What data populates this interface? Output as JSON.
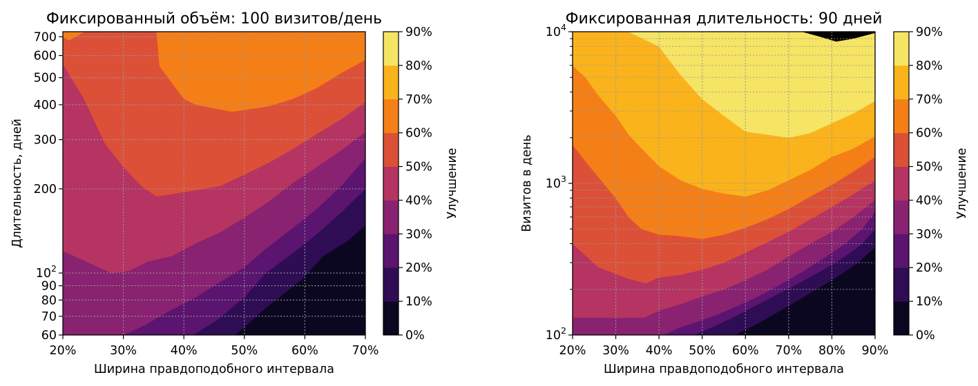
{
  "chart_data": [
    {
      "type": "heatmap",
      "title": "Фиксированный объём: 100 визитов/день",
      "xlabel": "Ширина правдоподобного интервала",
      "ylabel": "Длительность, дней",
      "xlim": [
        20,
        70
      ],
      "ylim": [
        60,
        730
      ],
      "yscale": "log",
      "grid": true,
      "x_ticks": [
        {
          "value": 20,
          "label": "20%"
        },
        {
          "value": 30,
          "label": "30%"
        },
        {
          "value": 40,
          "label": "40%"
        },
        {
          "value": 50,
          "label": "50%"
        },
        {
          "value": 60,
          "label": "60%"
        },
        {
          "value": 70,
          "label": "70%"
        }
      ],
      "y_ticks": [
        {
          "value": 60,
          "label": "60"
        },
        {
          "value": 70,
          "label": "70"
        },
        {
          "value": 80,
          "label": "80"
        },
        {
          "value": 90,
          "label": "90"
        },
        {
          "value": 100,
          "label": "10",
          "sup": "2"
        },
        {
          "value": 200,
          "label": "200"
        },
        {
          "value": 300,
          "label": "300"
        },
        {
          "value": 400,
          "label": "400"
        },
        {
          "value": 500,
          "label": "500"
        },
        {
          "value": 600,
          "label": "600"
        },
        {
          "value": 700,
          "label": "700"
        }
      ],
      "contour_boundaries": [
        {
          "level": 10,
          "points": [
            [
              48.5,
              60
            ],
            [
              53.5,
              75
            ],
            [
              59.5,
              95
            ],
            [
              63,
              115
            ],
            [
              67,
              130
            ],
            [
              70,
              148
            ]
          ]
        },
        {
          "level": 20,
          "points": [
            [
              41.5,
              60
            ],
            [
              45.5,
              68
            ],
            [
              50,
              82
            ],
            [
              53.5,
              100
            ],
            [
              58,
              118
            ],
            [
              62,
              138
            ],
            [
              66,
              165
            ],
            [
              70,
              200
            ]
          ]
        },
        {
          "level": 30,
          "points": [
            [
              30,
              60
            ],
            [
              33.5,
              65
            ],
            [
              37,
              72
            ],
            [
              42,
              82
            ],
            [
              46,
              93
            ],
            [
              50,
              105
            ],
            [
              53.5,
              122
            ],
            [
              58,
              145
            ],
            [
              62,
              170
            ],
            [
              66,
              205
            ],
            [
              70,
              258
            ]
          ]
        },
        {
          "level": 40,
          "points": [
            [
              20,
              120
            ],
            [
              28,
              100
            ],
            [
              31,
              102
            ],
            [
              34,
              110
            ],
            [
              38,
              115
            ],
            [
              42,
              128
            ],
            [
              46,
              140
            ],
            [
              50,
              158
            ],
            [
              54,
              180
            ],
            [
              58,
              210
            ],
            [
              62,
              240
            ],
            [
              66,
              275
            ],
            [
              70,
              320
            ]
          ]
        },
        {
          "level": 50,
          "points": [
            [
              20,
              560
            ],
            [
              23.5,
              420
            ],
            [
              27,
              290
            ],
            [
              30,
              240
            ],
            [
              33,
              205
            ],
            [
              35.5,
              188
            ],
            [
              42,
              198
            ],
            [
              46,
              205
            ],
            [
              50,
              225
            ],
            [
              54,
              248
            ],
            [
              58,
              278
            ],
            [
              62,
              315
            ],
            [
              66,
              355
            ],
            [
              70,
              410
            ]
          ]
        },
        {
          "level": 60,
          "points": [
            [
              20,
              730
            ],
            [
              20,
              700
            ],
            [
              21,
              680
            ],
            [
              23.5,
              730
            ],
            [
              38.5,
              730
            ]
          ]
        },
        {
          "level": 60,
          "points": [
            [
              35.5,
              730
            ],
            [
              36,
              550
            ],
            [
              40,
              420
            ],
            [
              42,
              400
            ],
            [
              48,
              378
            ],
            [
              54,
              395
            ],
            [
              58,
              420
            ],
            [
              62,
              460
            ],
            [
              66,
              520
            ],
            [
              70,
              580
            ]
          ]
        }
      ]
    },
    {
      "type": "heatmap",
      "title": "Фиксированная длительность: 90 дней",
      "xlabel": "Ширина правдоподобного интервала",
      "ylabel": "Визитов в день",
      "xlim": [
        20,
        90
      ],
      "ylim": [
        100,
        10000
      ],
      "yscale": "log",
      "grid": true,
      "x_ticks": [
        {
          "value": 20,
          "label": "20%"
        },
        {
          "value": 30,
          "label": "30%"
        },
        {
          "value": 40,
          "label": "40%"
        },
        {
          "value": 50,
          "label": "50%"
        },
        {
          "value": 60,
          "label": "60%"
        },
        {
          "value": 70,
          "label": "70%"
        },
        {
          "value": 80,
          "label": "80%"
        },
        {
          "value": 90,
          "label": "90%"
        }
      ],
      "y_ticks": [
        {
          "value": 100,
          "label": "10",
          "sup": "2"
        },
        {
          "value": 1000,
          "label": "10",
          "sup": "3"
        },
        {
          "value": 10000,
          "label": "10",
          "sup": "4"
        }
      ],
      "contour_boundaries": [
        {
          "level": 10,
          "points": [
            [
              57.5,
              100
            ],
            [
              63,
              120
            ],
            [
              69,
              150
            ],
            [
              75,
              190
            ],
            [
              81,
              240
            ],
            [
              86,
              300
            ],
            [
              90,
              380
            ]
          ]
        },
        {
          "level": 20,
          "points": [
            [
              48,
              100
            ],
            [
              53,
              115
            ],
            [
              58,
              135
            ],
            [
              63,
              160
            ],
            [
              68,
              190
            ],
            [
              73,
              225
            ],
            [
              78,
              270
            ],
            [
              83,
              330
            ],
            [
              87,
              400
            ],
            [
              90,
              500
            ]
          ]
        },
        {
          "level": 30,
          "points": [
            [
              41,
              100
            ],
            [
              44,
              110
            ],
            [
              48,
              120
            ],
            [
              53,
              135
            ],
            [
              58,
              155
            ],
            [
              63,
              180
            ],
            [
              68,
              215
            ],
            [
              73,
              260
            ],
            [
              78,
              320
            ],
            [
              83,
              400
            ],
            [
              87,
              500
            ],
            [
              90,
              650
            ]
          ]
        },
        {
          "level": 40,
          "points": [
            [
              20,
              130
            ],
            [
              36.5,
              130
            ],
            [
              40,
              145
            ],
            [
              45,
              160
            ],
            [
              50,
              180
            ],
            [
              55,
              200
            ],
            [
              60,
              230
            ],
            [
              65,
              270
            ],
            [
              70,
              330
            ],
            [
              75,
              400
            ],
            [
              80,
              480
            ],
            [
              85,
              600
            ],
            [
              90,
              780
            ]
          ]
        },
        {
          "level": 50,
          "points": [
            [
              20,
              400
            ],
            [
              26,
              280
            ],
            [
              33,
              235
            ],
            [
              37,
              220
            ],
            [
              40,
              240
            ],
            [
              45,
              250
            ],
            [
              50,
              270
            ],
            [
              55,
              300
            ],
            [
              60,
              350
            ],
            [
              65,
              410
            ],
            [
              70,
              480
            ],
            [
              75,
              580
            ],
            [
              80,
              700
            ],
            [
              85,
              850
            ],
            [
              90,
              1050
            ]
          ]
        },
        {
          "level": 60,
          "points": [
            [
              20,
              1800
            ],
            [
              23,
              1400
            ],
            [
              26,
              1100
            ],
            [
              30,
              800
            ],
            [
              33,
              600
            ],
            [
              36,
              500
            ],
            [
              40,
              460
            ],
            [
              45,
              450
            ],
            [
              50,
              430
            ],
            [
              55,
              460
            ],
            [
              60,
              510
            ],
            [
              65,
              580
            ],
            [
              70,
              680
            ],
            [
              75,
              820
            ],
            [
              80,
              980
            ],
            [
              85,
              1200
            ],
            [
              90,
              1500
            ]
          ]
        },
        {
          "level": 70,
          "points": [
            [
              20,
              6000
            ],
            [
              23,
              5000
            ],
            [
              26,
              3800
            ],
            [
              30,
              2800
            ],
            [
              33,
              2100
            ],
            [
              36,
              1700
            ],
            [
              40,
              1300
            ],
            [
              45,
              1050
            ],
            [
              50,
              920
            ],
            [
              55,
              860
            ],
            [
              60,
              820
            ],
            [
              65,
              900
            ],
            [
              70,
              1050
            ],
            [
              75,
              1230
            ],
            [
              80,
              1500
            ],
            [
              85,
              1700
            ],
            [
              90,
              2050
            ]
          ]
        },
        {
          "level": 80,
          "points": [
            [
              20,
              10000
            ],
            [
              30,
              10000
            ],
            [
              33,
              10000
            ],
            [
              40,
              8000
            ],
            [
              45,
              5200
            ],
            [
              50,
              3600
            ],
            [
              55,
              2800
            ],
            [
              60,
              2200
            ],
            [
              65,
              2100
            ],
            [
              70,
              2000
            ],
            [
              75,
              2150
            ],
            [
              80,
              2500
            ],
            [
              85,
              2900
            ],
            [
              90,
              3500
            ]
          ]
        },
        {
          "level": 90,
          "points": [
            [
              73,
              10000
            ],
            [
              77,
              9300
            ],
            [
              81,
              8600
            ],
            [
              85,
              9000
            ],
            [
              90,
              9800
            ],
            [
              90,
              10000
            ]
          ]
        }
      ]
    }
  ],
  "colorbars": [
    {
      "label": "Улучшение",
      "tick_labels": [
        "0%",
        "10%",
        "20%",
        "30%",
        "40%",
        "50%",
        "60%",
        "70%",
        "80%",
        "90%"
      ]
    },
    {
      "label": "Улучшение",
      "tick_labels": [
        "0%",
        "10%",
        "20%",
        "30%",
        "40%",
        "50%",
        "60%",
        "70%",
        "80%",
        "90%"
      ]
    }
  ],
  "colormap": {
    "name": "inferno",
    "band_colors": [
      "#0b0720",
      "#2f0d55",
      "#5b1470",
      "#892270",
      "#b53461",
      "#dc5038",
      "#f57f17",
      "#fbb31b",
      "#f6e464"
    ],
    "background": "#0b0720",
    "grid_color": "#999999"
  }
}
